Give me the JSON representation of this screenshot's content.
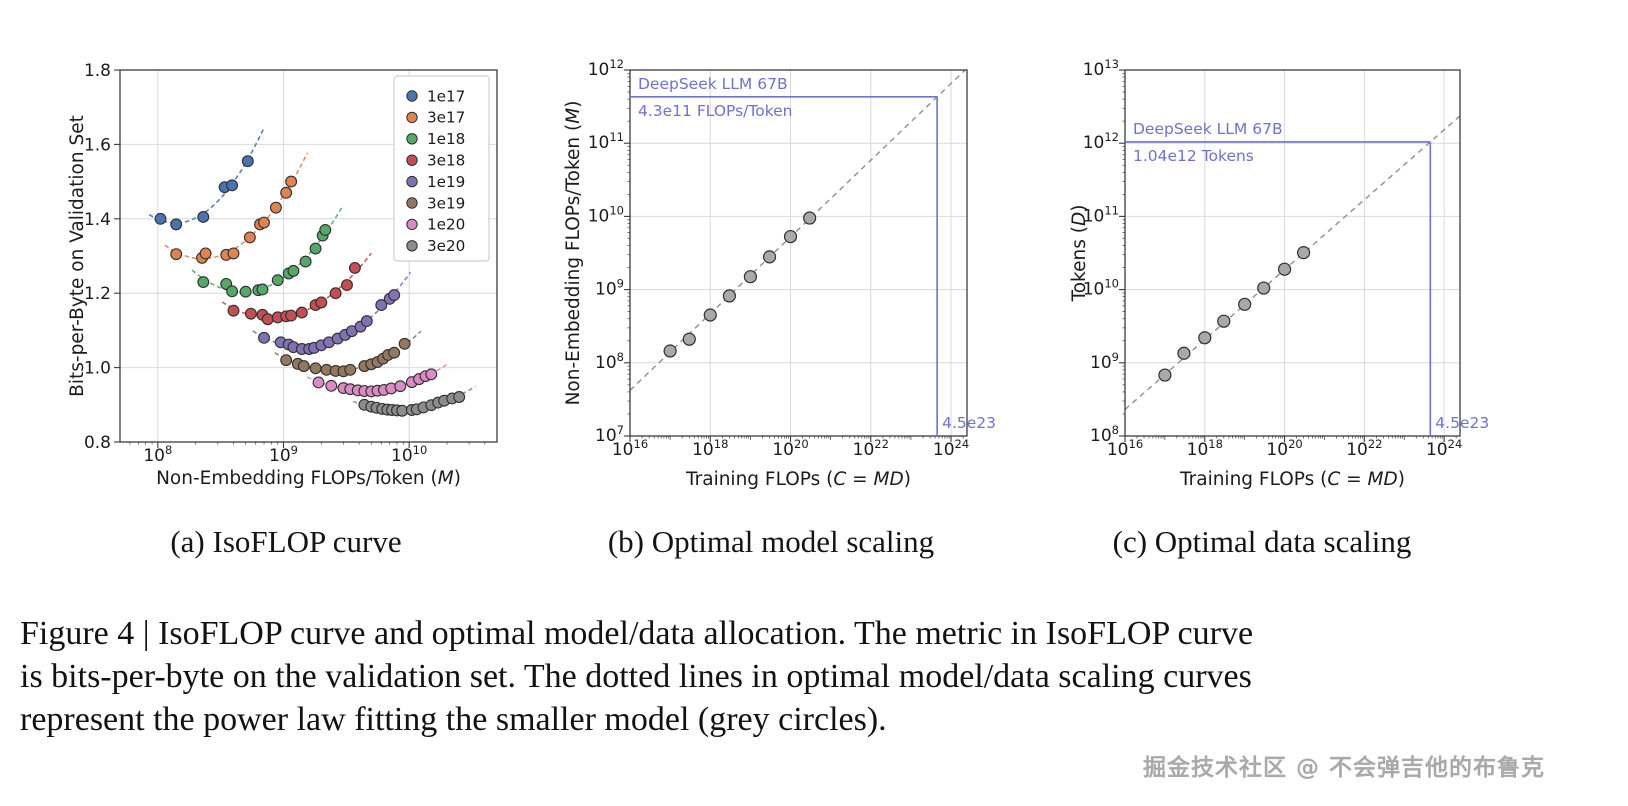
{
  "figure": {
    "subcaptions": [
      "(a) IsoFLOP curve",
      "(b) Optimal model scaling",
      "(c) Optimal data scaling"
    ],
    "caption_lines": [
      "Figure 4 | IsoFLOP curve and optimal model/data allocation. The metric in IsoFLOP curve",
      "is bits-per-byte on the validation set. The dotted lines in optimal model/data scaling curves",
      "represent the power law fitting the smaller model (grey circles)."
    ],
    "watermark": "掘金技术社区 @ 不会弹吉他的布鲁克"
  },
  "colors": {
    "grid": "#d9d9d9",
    "spine": "#3b3b3b",
    "text": "#1c1c1c",
    "accent_blue": "#6e73cd",
    "fit_gray": "#8f8f8f",
    "point_edge": "#2f2f2f",
    "legend_border": "#cfcfcf"
  },
  "chart_data": [
    {
      "id": "isoflop",
      "type": "scatter",
      "xscale": "log",
      "yscale": "linear",
      "xlim": [
        50000000.0,
        50000000000.0
      ],
      "ylim": [
        0.8,
        1.8
      ],
      "xticks_exp": [
        8,
        9,
        10
      ],
      "yticks": [
        0.8,
        1.0,
        1.2,
        1.4,
        1.6,
        1.8
      ],
      "ytick_labels": [
        "0.8",
        "1.0",
        "1.2",
        "1.4",
        "1.6",
        "1.8"
      ],
      "xlabel_segments": [
        {
          "t": "Non-Embedding FLOPs/Token ("
        },
        {
          "t": "M",
          "i": true
        },
        {
          "t": ")"
        }
      ],
      "ylabel_segments": [
        {
          "t": "Bits-per-Byte on Validation Set"
        }
      ],
      "legend_position": "upper right",
      "series": [
        {
          "name": "1e17",
          "color": "#4C72B0",
          "points": [
            [
              105000000.0,
              1.4
            ],
            [
              140000000.0,
              1.385
            ],
            [
              230000000.0,
              1.405
            ],
            [
              340000000.0,
              1.485
            ],
            [
              390000000.0,
              1.49
            ],
            [
              520000000.0,
              1.555
            ]
          ]
        },
        {
          "name": "3e17",
          "color": "#DD8452",
          "points": [
            [
              140000000.0,
              1.305
            ],
            [
              225000000.0,
              1.295
            ],
            [
              240000000.0,
              1.307
            ],
            [
              350000000.0,
              1.303
            ],
            [
              400000000.0,
              1.307
            ],
            [
              540000000.0,
              1.35
            ],
            [
              650000000.0,
              1.385
            ],
            [
              700000000.0,
              1.39
            ],
            [
              870000000.0,
              1.43
            ],
            [
              1050000000.0,
              1.47
            ],
            [
              1150000000.0,
              1.5
            ]
          ]
        },
        {
          "name": "1e18",
          "color": "#55A868",
          "points": [
            [
              230000000.0,
              1.23
            ],
            [
              350000000.0,
              1.225
            ],
            [
              390000000.0,
              1.205
            ],
            [
              500000000.0,
              1.204
            ],
            [
              630000000.0,
              1.208
            ],
            [
              680000000.0,
              1.21
            ],
            [
              900000000.0,
              1.235
            ],
            [
              1100000000.0,
              1.253
            ],
            [
              1200000000.0,
              1.26
            ],
            [
              1500000000.0,
              1.285
            ],
            [
              1800000000.0,
              1.32
            ],
            [
              2050000000.0,
              1.355
            ],
            [
              2150000000.0,
              1.37
            ]
          ]
        },
        {
          "name": "3e18",
          "color": "#C44E52",
          "points": [
            [
              400000000.0,
              1.153
            ],
            [
              550000000.0,
              1.145
            ],
            [
              680000000.0,
              1.142
            ],
            [
              750000000.0,
              1.13
            ],
            [
              900000000.0,
              1.135
            ],
            [
              1050000000.0,
              1.138
            ],
            [
              1150000000.0,
              1.14
            ],
            [
              1400000000.0,
              1.148
            ],
            [
              1800000000.0,
              1.168
            ],
            [
              2000000000.0,
              1.175
            ],
            [
              2600000000.0,
              1.2
            ],
            [
              3200000000.0,
              1.222
            ],
            [
              3700000000.0,
              1.268
            ]
          ]
        },
        {
          "name": "1e19",
          "color": "#8172B3",
          "points": [
            [
              700000000.0,
              1.08
            ],
            [
              950000000.0,
              1.068
            ],
            [
              1100000000.0,
              1.062
            ],
            [
              1200000000.0,
              1.055
            ],
            [
              1400000000.0,
              1.05
            ],
            [
              1600000000.0,
              1.05
            ],
            [
              1750000000.0,
              1.053
            ],
            [
              2000000000.0,
              1.06
            ],
            [
              2300000000.0,
              1.068
            ],
            [
              2700000000.0,
              1.078
            ],
            [
              3100000000.0,
              1.088
            ],
            [
              3500000000.0,
              1.098
            ],
            [
              4100000000.0,
              1.11
            ],
            [
              4600000000.0,
              1.125
            ],
            [
              6000000000.0,
              1.168
            ],
            [
              7000000000.0,
              1.185
            ],
            [
              7600000000.0,
              1.195
            ]
          ]
        },
        {
          "name": "3e19",
          "color": "#937860",
          "points": [
            [
              1050000000.0,
              1.02
            ],
            [
              1300000000.0,
              1.01
            ],
            [
              1450000000.0,
              1.004
            ],
            [
              1800000000.0,
              0.998
            ],
            [
              2200000000.0,
              0.994
            ],
            [
              2600000000.0,
              0.991
            ],
            [
              3000000000.0,
              0.99
            ],
            [
              3400000000.0,
              0.994
            ],
            [
              4400000000.0,
              1.004
            ],
            [
              5000000000.0,
              1.009
            ],
            [
              5600000000.0,
              1.015
            ],
            [
              6200000000.0,
              1.024
            ],
            [
              6800000000.0,
              1.034
            ],
            [
              7600000000.0,
              1.04
            ],
            [
              9200000000.0,
              1.064
            ]
          ]
        },
        {
          "name": "1e20",
          "color": "#DA8BC3",
          "points": [
            [
              1900000000.0,
              0.96
            ],
            [
              2400000000.0,
              0.951
            ],
            [
              3000000000.0,
              0.945
            ],
            [
              3400000000.0,
              0.942
            ],
            [
              3900000000.0,
              0.939
            ],
            [
              4400000000.0,
              0.937
            ],
            [
              5000000000.0,
              0.936
            ],
            [
              5600000000.0,
              0.938
            ],
            [
              6300000000.0,
              0.94
            ],
            [
              7200000000.0,
              0.944
            ],
            [
              8500000000.0,
              0.95
            ],
            [
              10500000000.0,
              0.961
            ],
            [
              12000000000.0,
              0.969
            ],
            [
              13500000000.0,
              0.977
            ],
            [
              15000000000.0,
              0.982
            ]
          ]
        },
        {
          "name": "3e20",
          "color": "#8C8C8C",
          "points": [
            [
              4400000000.0,
              0.9
            ],
            [
              5000000000.0,
              0.895
            ],
            [
              5500000000.0,
              0.892
            ],
            [
              6100000000.0,
              0.889
            ],
            [
              6700000000.0,
              0.887
            ],
            [
              7300000000.0,
              0.886
            ],
            [
              8000000000.0,
              0.885
            ],
            [
              8800000000.0,
              0.884
            ],
            [
              10500000000.0,
              0.886
            ],
            [
              11500000000.0,
              0.888
            ],
            [
              13000000000.0,
              0.893
            ],
            [
              15000000000.0,
              0.899
            ],
            [
              17000000000.0,
              0.906
            ],
            [
              19000000000.0,
              0.911
            ],
            [
              22000000000.0,
              0.917
            ],
            [
              25000000000.0,
              0.921
            ]
          ]
        }
      ]
    },
    {
      "id": "model_scaling",
      "type": "scatter",
      "xscale": "log",
      "yscale": "log",
      "xlim": [
        1e+16,
        2.5e+24
      ],
      "ylim": [
        10000000.0,
        1000000000000.0
      ],
      "xticks_exp": [
        16,
        18,
        20,
        22,
        24
      ],
      "yticks_exp": [
        7,
        8,
        9,
        10,
        11,
        12
      ],
      "xlabel_segments": [
        {
          "t": "Training FLOPs ("
        },
        {
          "t": "C = MD",
          "i": true
        },
        {
          "t": ")"
        }
      ],
      "ylabel_segments": [
        {
          "t": "Non-Embedding FLOPs/Token ("
        },
        {
          "t": "M",
          "i": true
        },
        {
          "t": ")"
        }
      ],
      "point_color": "#a9a9a9",
      "points": [
        [
          1e+17,
          145000000.0
        ],
        [
          3e+17,
          210000000.0
        ],
        [
          1e+18,
          450000000.0
        ],
        [
          3e+18,
          820000000.0
        ],
        [
          1e+19,
          1500000000.0
        ],
        [
          3e+19,
          2800000000.0
        ],
        [
          1e+20,
          5300000000.0
        ],
        [
          3e+20,
          9500000000.0
        ]
      ],
      "fit_line": {
        "p1": [
          1e+16,
          42000000.0
        ],
        "p2": [
          4.5e+23,
          430000000000.0
        ]
      },
      "annotation": {
        "title": "DeepSeek LLM 67B",
        "value_label": "4.3e11 FLOPs/Token",
        "x": 4.5e+23,
        "y": 430000000000.0,
        "x_label": "4.5e23"
      }
    },
    {
      "id": "data_scaling",
      "type": "scatter",
      "xscale": "log",
      "yscale": "log",
      "xlim": [
        1e+16,
        2.5e+24
      ],
      "ylim": [
        100000000.0,
        10000000000000.0
      ],
      "xticks_exp": [
        16,
        18,
        20,
        22,
        24
      ],
      "yticks_exp": [
        8,
        9,
        10,
        11,
        12,
        13
      ],
      "xlabel_segments": [
        {
          "t": "Training FLOPs ("
        },
        {
          "t": "C = MD",
          "i": true
        },
        {
          "t": ")"
        }
      ],
      "ylabel_segments": [
        {
          "t": "Tokens ("
        },
        {
          "t": "D",
          "i": true
        },
        {
          "t": ")"
        }
      ],
      "point_color": "#a9a9a9",
      "points": [
        [
          1e+17,
          680000000.0
        ],
        [
          3e+17,
          1350000000.0
        ],
        [
          1e+18,
          2200000000.0
        ],
        [
          3e+18,
          3700000000.0
        ],
        [
          1e+19,
          6300000000.0
        ],
        [
          3e+19,
          10500000000.0
        ],
        [
          1e+20,
          19000000000.0
        ],
        [
          3e+20,
          32000000000.0
        ]
      ],
      "fit_line": {
        "p1": [
          1e+16,
          230000000.0
        ],
        "p2": [
          4.5e+23,
          1040000000000.0
        ]
      },
      "annotation": {
        "title": "DeepSeek LLM 67B",
        "value_label": "1.04e12 Tokens",
        "x": 4.5e+23,
        "y": 1040000000000.0,
        "x_label": "4.5e23"
      }
    }
  ]
}
